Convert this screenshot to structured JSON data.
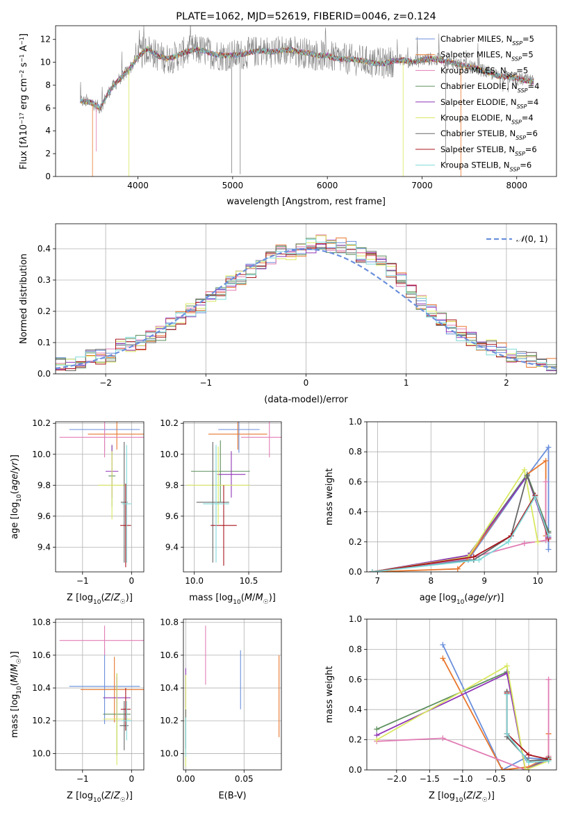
{
  "colors": {
    "Chabrier MILES": "#6a8fdc",
    "Salpeter MILES": "#e8762c",
    "Kroupa MILES": "#e17db4",
    "Chabrier ELODIE": "#5d8f5d",
    "Salpeter ELODIE": "#8f35b6",
    "Kroupa ELODIE": "#d9e860",
    "Chabrier STELIB": "#666666",
    "Salpeter STELIB": "#a7141d",
    "Kroupa STELIB": "#7fd8d8",
    "data": "#808080",
    "normal": "#6a8fdc"
  },
  "chart_data": [
    {
      "type": "line",
      "title": "PLATE=1062, MJD=52619, FIBERID=0046, z=0.124",
      "xlabel": "wavelength [Angstrom, rest frame]",
      "ylabel": "Flux [f_λ10^-17 erg cm^-2 s^-1 A^-1]",
      "xlim": [
        3130,
        8420
      ],
      "ylim": [
        0,
        13.2
      ],
      "xticks": [
        4000,
        5000,
        6000,
        7000,
        8000
      ],
      "yticks": [
        0,
        2,
        4,
        6,
        8,
        10,
        12
      ],
      "legend_position": "top-right",
      "legend": [
        {
          "name": "Chabrier MILES",
          "sub": "N_SSP=5"
        },
        {
          "name": "Salpeter MILES",
          "sub": "N_SSP=5"
        },
        {
          "name": "Kroupa MILES",
          "sub": "N_SSP=5"
        },
        {
          "name": "Chabrier ELODIE",
          "sub": "N_SSP=4"
        },
        {
          "name": "Salpeter ELODIE",
          "sub": "N_SSP=4"
        },
        {
          "name": "Kroupa ELODIE",
          "sub": "N_SSP=4"
        },
        {
          "name": "Chabrier STELIB",
          "sub": "N_SSP=6"
        },
        {
          "name": "Salpeter STELIB",
          "sub": "N_SSP=6"
        },
        {
          "name": "Kroupa STELIB",
          "sub": "N_SSP=6"
        }
      ],
      "spectrum_outline": {
        "wavelength": [
          3390,
          3500,
          3600,
          3700,
          3800,
          3900,
          4000,
          4100,
          4200,
          4300,
          4400,
          4500,
          4600,
          4700,
          4800,
          4900,
          5000,
          5100,
          5200,
          5300,
          5400,
          5500,
          5600,
          5700,
          5800,
          5900,
          6000,
          6100,
          6200,
          6300,
          6400,
          6500,
          6600,
          6700,
          6800,
          6900,
          7000,
          7100,
          7200,
          7300,
          7400,
          7500,
          7600,
          7700,
          7800,
          7900,
          8000,
          8100,
          8180
        ],
        "flux": [
          6.6,
          6.5,
          6.0,
          7.5,
          8.5,
          9.3,
          10.5,
          11.2,
          10.6,
          10.3,
          10.5,
          10.9,
          11.1,
          11.0,
          10.7,
          10.6,
          10.6,
          10.7,
          10.9,
          11.0,
          10.9,
          11.0,
          11.1,
          10.9,
          10.8,
          10.6,
          10.6,
          10.3,
          10.3,
          10.2,
          10.1,
          9.9,
          9.9,
          10.1,
          10.2,
          10.0,
          10.2,
          10.3,
          10.2,
          10.0,
          9.8,
          9.6,
          9.4,
          9.1,
          8.8,
          8.7,
          8.6,
          8.4,
          8.3
        ]
      }
    },
    {
      "type": "histogram",
      "xlabel": "(data-model)/error",
      "ylabel": "Normed distribution",
      "xlim": [
        -2.5,
        2.5
      ],
      "ylim": [
        0,
        0.48
      ],
      "xticks": [
        -2,
        -1,
        0,
        1,
        2
      ],
      "yticks": [
        0.0,
        0.1,
        0.2,
        0.3,
        0.4
      ],
      "legend": "N(0, 1)",
      "legend_position": "top-right",
      "bin_edges": [
        -2.5,
        -2.4,
        -2.3,
        -2.2,
        -2.1,
        -2.0,
        -1.9,
        -1.8,
        -1.7,
        -1.6,
        -1.5,
        -1.4,
        -1.3,
        -1.2,
        -1.1,
        -1.0,
        -0.9,
        -0.8,
        -0.7,
        -0.6,
        -0.5,
        -0.4,
        -0.3,
        -0.2,
        -0.1,
        0.0,
        0.1,
        0.2,
        0.3,
        0.4,
        0.5,
        0.6,
        0.7,
        0.8,
        0.9,
        1.0,
        1.1,
        1.2,
        1.3,
        1.4,
        1.5,
        1.6,
        1.7,
        1.8,
        1.9,
        2.0,
        2.1,
        2.2,
        2.3,
        2.4,
        2.5
      ],
      "densities": [
        0.03,
        0.025,
        0.04,
        0.055,
        0.055,
        0.06,
        0.09,
        0.095,
        0.1,
        0.12,
        0.13,
        0.16,
        0.18,
        0.2,
        0.22,
        0.24,
        0.26,
        0.29,
        0.31,
        0.33,
        0.35,
        0.37,
        0.39,
        0.38,
        0.4,
        0.41,
        0.42,
        0.41,
        0.41,
        0.4,
        0.38,
        0.37,
        0.36,
        0.33,
        0.3,
        0.26,
        0.23,
        0.2,
        0.17,
        0.15,
        0.13,
        0.11,
        0.095,
        0.085,
        0.075,
        0.06,
        0.055,
        0.045,
        0.035,
        0.03
      ]
    },
    {
      "type": "scatter",
      "xlabel": "Z [log10(Z/Z☉)]",
      "ylabel": "age [log10(age/yr)]",
      "xlim": [
        -1.55,
        0.25
      ],
      "ylim": [
        9.24,
        10.21
      ],
      "xticks": [
        -1,
        0
      ],
      "yticks": [
        9.4,
        9.6,
        9.8,
        10.0,
        10.2
      ],
      "points": [
        {
          "series": "Chabrier MILES",
          "x": -0.55,
          "xerr": 0.72,
          "y": 10.16,
          "yerr": 0.15
        },
        {
          "series": "Salpeter MILES",
          "x": -0.3,
          "xerr": 0.59,
          "y": 10.13,
          "yerr": 0.1
        },
        {
          "series": "Kroupa MILES",
          "x": -0.55,
          "xerr": 0.92,
          "y": 10.11,
          "yerr": 0.13
        },
        {
          "series": "Chabrier ELODIE",
          "x": -0.4,
          "xerr": 0.07,
          "y": 9.86,
          "yerr": 0.2
        },
        {
          "series": "Salpeter ELODIE",
          "x": -0.4,
          "xerr": 0.13,
          "y": 9.89,
          "yerr": 0.17
        },
        {
          "series": "Kroupa ELODIE",
          "x": -0.4,
          "xerr": 0.28,
          "y": 9.8,
          "yerr": 0.22
        },
        {
          "series": "Chabrier STELIB",
          "x": -0.15,
          "xerr": 0.07,
          "y": 9.69,
          "yerr": 0.39
        },
        {
          "series": "Salpeter STELIB",
          "x": -0.12,
          "xerr": 0.11,
          "y": 9.54,
          "yerr": 0.27
        },
        {
          "series": "Kroupa STELIB",
          "x": -0.1,
          "xerr": 0.1,
          "y": 9.68,
          "yerr": 0.38
        }
      ]
    },
    {
      "type": "scatter",
      "xlabel": "mass [log10(M/M☉)]",
      "xlim": [
        9.9,
        10.8
      ],
      "ylim": [
        9.24,
        10.21
      ],
      "xticks": [
        10.0,
        10.5
      ],
      "yticks": [
        9.4,
        9.6,
        9.8,
        10.0,
        10.2
      ],
      "points": [
        {
          "series": "Chabrier MILES",
          "x": 10.41,
          "xerr": 0.19,
          "y": 10.16,
          "yerr": 0.15
        },
        {
          "series": "Salpeter MILES",
          "x": 10.4,
          "xerr": 0.27,
          "y": 10.13,
          "yerr": 0.1
        },
        {
          "series": "Kroupa MILES",
          "x": 10.69,
          "xerr": 0.26,
          "y": 10.11,
          "yerr": 0.13
        },
        {
          "series": "Chabrier ELODIE",
          "x": 10.24,
          "xerr": 0.27,
          "y": 9.89,
          "yerr": 0.2
        },
        {
          "series": "Salpeter ELODIE",
          "x": 10.34,
          "xerr": 0.13,
          "y": 9.87,
          "yerr": 0.15
        },
        {
          "series": "Kroupa ELODIE",
          "x": 10.22,
          "xerr": 0.29,
          "y": 9.8,
          "yerr": 0.25
        },
        {
          "series": "Chabrier STELIB",
          "x": 10.17,
          "xerr": 0.15,
          "y": 9.69,
          "yerr": 0.39
        },
        {
          "series": "Salpeter STELIB",
          "x": 10.27,
          "xerr": 0.12,
          "y": 9.54,
          "yerr": 0.26
        },
        {
          "series": "Kroupa STELIB",
          "x": 10.2,
          "xerr": 0.12,
          "y": 9.68,
          "yerr": 0.38
        }
      ]
    },
    {
      "type": "line",
      "xlabel": "age [log10(age/yr)]",
      "ylabel": "mass weight",
      "xlim": [
        6.8,
        10.35
      ],
      "ylim": [
        0,
        1
      ],
      "xticks": [
        7,
        8,
        9,
        10
      ],
      "yticks": [
        0.0,
        0.2,
        0.4,
        0.6,
        0.8,
        1.0
      ],
      "series": [
        {
          "name": "Chabrier MILES",
          "x": [
            6.9,
            8.7,
            9.8,
            10.2,
            10.2
          ],
          "y": [
            0.0,
            0.08,
            0.64,
            0.83,
            0.15
          ]
        },
        {
          "name": "Salpeter MILES",
          "x": [
            6.9,
            8.5,
            8.7,
            9.8,
            10.15,
            10.15
          ],
          "y": [
            0.0,
            0.02,
            0.09,
            0.65,
            0.74,
            0.24
          ]
        },
        {
          "name": "Kroupa MILES",
          "x": [
            6.9,
            8.7,
            9.75,
            10.15,
            10.15
          ],
          "y": [
            0.0,
            0.09,
            0.19,
            0.21,
            0.6
          ]
        },
        {
          "name": "Chabrier ELODIE",
          "x": [
            6.9,
            8.7,
            9.8,
            10.2
          ],
          "y": [
            0.0,
            0.11,
            0.65,
            0.27
          ]
        },
        {
          "name": "Salpeter ELODIE",
          "x": [
            6.9,
            8.7,
            9.8,
            10.2
          ],
          "y": [
            0.0,
            0.11,
            0.64,
            0.23
          ]
        },
        {
          "name": "Kroupa ELODIE",
          "x": [
            6.9,
            8.7,
            9.75,
            10.0
          ],
          "y": [
            0.0,
            0.1,
            0.68,
            0.2
          ]
        },
        {
          "name": "Chabrier STELIB",
          "x": [
            6.9,
            8.8,
            9.5,
            9.8,
            10.2
          ],
          "y": [
            0.0,
            0.08,
            0.24,
            0.64,
            0.26
          ]
        },
        {
          "name": "Salpeter STELIB",
          "x": [
            6.9,
            8.8,
            9.5,
            9.95,
            10.2
          ],
          "y": [
            0.0,
            0.1,
            0.24,
            0.51,
            0.22
          ]
        },
        {
          "name": "Kroupa STELIB",
          "x": [
            6.9,
            8.9,
            9.45,
            9.95,
            10.2
          ],
          "y": [
            0.0,
            0.08,
            0.2,
            0.5,
            0.24
          ]
        }
      ]
    },
    {
      "type": "scatter",
      "xlabel": "Z [log10(Z/Z☉)]",
      "ylabel": "mass [log10(M/M☉)]",
      "xlim": [
        -1.55,
        0.25
      ],
      "ylim": [
        9.9,
        10.82
      ],
      "xticks": [
        -1,
        0
      ],
      "yticks": [
        10.0,
        10.2,
        10.4,
        10.6,
        10.8
      ],
      "points": [
        {
          "series": "Chabrier MILES",
          "x": -0.55,
          "xerr": 0.72,
          "y": 10.41,
          "yerr": 0.23
        },
        {
          "series": "Salpeter MILES",
          "x": -0.35,
          "xerr": 0.69,
          "y": 10.39,
          "yerr": 0.2
        },
        {
          "series": "Kroupa MILES",
          "x": -0.55,
          "xerr": 0.92,
          "y": 10.69,
          "yerr": 0.09
        },
        {
          "series": "Chabrier ELODIE",
          "x": -0.3,
          "xerr": 0.28,
          "y": 10.24,
          "yerr": 0.25
        },
        {
          "series": "Salpeter ELODIE",
          "x": -0.3,
          "xerr": 0.28,
          "y": 10.34,
          "yerr": 0.13
        },
        {
          "series": "Kroupa ELODIE",
          "x": -0.3,
          "xerr": 0.28,
          "y": 10.21,
          "yerr": 0.28
        },
        {
          "series": "Chabrier STELIB",
          "x": -0.15,
          "xerr": 0.09,
          "y": 10.17,
          "yerr": 0.15
        },
        {
          "series": "Salpeter STELIB",
          "x": -0.12,
          "xerr": 0.1,
          "y": 10.27,
          "yerr": 0.13
        },
        {
          "series": "Kroupa STELIB",
          "x": -0.1,
          "xerr": 0.1,
          "y": 10.2,
          "yerr": 0.12
        }
      ]
    },
    {
      "type": "scatter",
      "xlabel": "E(B-V)",
      "xlim": [
        -0.002,
        0.082
      ],
      "ylim": [
        9.9,
        10.82
      ],
      "xticks": [
        0.0,
        0.05
      ],
      "yticks": [
        10.0,
        10.2,
        10.4,
        10.6,
        10.8
      ],
      "points": [
        {
          "series": "Chabrier MILES",
          "x": 0.047,
          "y": 10.45,
          "yerr": 0.18
        },
        {
          "series": "Salpeter MILES",
          "x": 0.08,
          "y": 10.35,
          "yerr": 0.25
        },
        {
          "series": "Kroupa MILES",
          "x": 0.017,
          "y": 10.6,
          "yerr": 0.18
        },
        {
          "series": "Salpeter ELODIE",
          "x": 0.0,
          "y": 10.4,
          "yerr": 0.12
        },
        {
          "series": "Kroupa ELODIE",
          "x": 0.0,
          "y": 10.2,
          "yerr": 0.28
        },
        {
          "series": "Chabrier STELIB",
          "x": 0.0,
          "y": 10.15,
          "yerr": 0.12
        },
        {
          "series": "Kroupa STELIB",
          "x": 0.0,
          "y": 10.1,
          "yerr": 0.12
        }
      ]
    },
    {
      "type": "line",
      "xlabel": "Z [log10(Z/Z☉)]",
      "ylabel": "mass weight",
      "xlim": [
        -2.45,
        0.42
      ],
      "ylim": [
        0,
        1
      ],
      "xticks": [
        -2.0,
        -1.5,
        -1.0,
        -0.5,
        0.0
      ],
      "yticks": [
        0.0,
        0.2,
        0.4,
        0.6,
        0.8,
        1.0
      ],
      "series": [
        {
          "name": "Chabrier MILES",
          "x": [
            -1.3,
            -0.4,
            -0.05,
            0.3
          ],
          "y": [
            0.83,
            0.0,
            0.08,
            0.07
          ]
        },
        {
          "name": "Salpeter MILES",
          "x": [
            -1.3,
            -0.4,
            0.0,
            0.3,
            0.3
          ],
          "y": [
            0.74,
            0.0,
            0.02,
            0.09,
            0.24
          ]
        },
        {
          "name": "Kroupa MILES",
          "x": [
            -2.3,
            -1.3,
            -0.05,
            0.3,
            0.3
          ],
          "y": [
            0.19,
            0.21,
            0.0,
            0.09,
            0.6
          ]
        },
        {
          "name": "Chabrier ELODIE",
          "x": [
            -2.3,
            -0.33,
            -0.05,
            0.3
          ],
          "y": [
            0.27,
            0.65,
            0.0,
            0.08
          ]
        },
        {
          "name": "Salpeter ELODIE",
          "x": [
            -2.3,
            -0.33,
            -0.05,
            0.3
          ],
          "y": [
            0.23,
            0.64,
            0.0,
            0.07
          ]
        },
        {
          "name": "Kroupa ELODIE",
          "x": [
            -2.3,
            -0.33,
            -0.05,
            0.3
          ],
          "y": [
            0.2,
            0.69,
            0.0,
            0.06
          ]
        },
        {
          "name": "Chabrier STELIB",
          "x": [
            -0.33,
            -0.33,
            0.0,
            0.3
          ],
          "y": [
            0.52,
            0.22,
            0.06,
            0.07
          ]
        },
        {
          "name": "Salpeter STELIB",
          "x": [
            -0.33,
            -0.33,
            0.0,
            0.3
          ],
          "y": [
            0.51,
            0.24,
            0.1,
            0.07
          ]
        },
        {
          "name": "Kroupa STELIB",
          "x": [
            -0.33,
            -0.33,
            0.0,
            0.3
          ],
          "y": [
            0.5,
            0.24,
            0.05,
            0.06
          ]
        }
      ]
    }
  ]
}
